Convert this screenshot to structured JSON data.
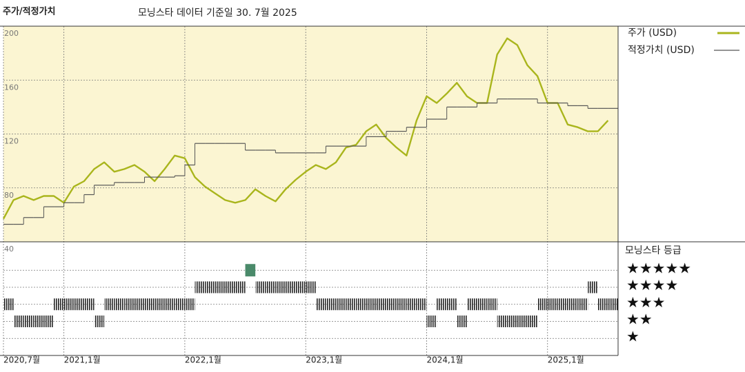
{
  "chart_data": [
    {
      "type": "line",
      "title": "주가/적정가치",
      "subtitle": "모닝스타 데이터 기준일 30. 7월 2025",
      "x": [
        "2020-07",
        "2020-08",
        "2020-09",
        "2020-10",
        "2020-11",
        "2020-12",
        "2021-01",
        "2021-02",
        "2021-03",
        "2021-04",
        "2021-05",
        "2021-06",
        "2021-07",
        "2021-08",
        "2021-09",
        "2021-10",
        "2021-11",
        "2021-12",
        "2022-01",
        "2022-02",
        "2022-03",
        "2022-04",
        "2022-05",
        "2022-06",
        "2022-07",
        "2022-08",
        "2022-09",
        "2022-10",
        "2022-11",
        "2022-12",
        "2023-01",
        "2023-02",
        "2023-03",
        "2023-04",
        "2023-05",
        "2023-06",
        "2023-07",
        "2023-08",
        "2023-09",
        "2023-10",
        "2023-11",
        "2023-12",
        "2024-01",
        "2024-02",
        "2024-03",
        "2024-04",
        "2024-05",
        "2024-06",
        "2024-07",
        "2024-08",
        "2024-09",
        "2024-10",
        "2024-11",
        "2024-12",
        "2025-01",
        "2025-02",
        "2025-03",
        "2025-04",
        "2025-05",
        "2025-06",
        "2025-07"
      ],
      "xlim": [
        "2020-07",
        "2025-08"
      ],
      "xticks": [
        {
          "value": "2020-07",
          "label": "2020,7월"
        },
        {
          "value": "2021-01",
          "label": "2021,1월"
        },
        {
          "value": "2022-01",
          "label": "2022,1월"
        },
        {
          "value": "2023-01",
          "label": "2023,1월"
        },
        {
          "value": "2024-01",
          "label": "2024,1월"
        },
        {
          "value": "2025-01",
          "label": "2025,1월"
        }
      ],
      "ylim": [
        40,
        200
      ],
      "yticks": [
        40,
        80,
        120,
        160,
        200
      ],
      "series": [
        {
          "name": "주가 (USD)",
          "color": "#a9b51c",
          "style": "line",
          "values": [
            57,
            71,
            74,
            71,
            74,
            74,
            69,
            81,
            85,
            94,
            99,
            92,
            94,
            97,
            92,
            85,
            94,
            104,
            102,
            88,
            81,
            76,
            71,
            69,
            71,
            79,
            74,
            70,
            79,
            86,
            92,
            97,
            94,
            99,
            110,
            112,
            122,
            127,
            117,
            110,
            104,
            130,
            148,
            143,
            150,
            158,
            148,
            143,
            143,
            179,
            191,
            186,
            171,
            163,
            143,
            143,
            127,
            125,
            122,
            122,
            130
          ]
        },
        {
          "name": "적정가치 (USD)",
          "color": "#555555",
          "style": "step",
          "values": [
            53,
            53,
            58,
            58,
            66,
            66,
            69,
            69,
            75,
            82,
            82,
            84,
            84,
            84,
            88,
            88,
            88,
            89,
            97,
            113,
            113,
            113,
            113,
            113,
            108,
            108,
            108,
            106,
            106,
            106,
            106,
            106,
            111,
            111,
            111,
            111,
            118,
            118,
            122,
            122,
            125,
            125,
            131,
            131,
            140,
            140,
            140,
            143,
            143,
            146,
            146,
            146,
            146,
            143,
            143,
            143,
            141,
            141,
            139,
            139,
            139
          ]
        }
      ]
    },
    {
      "type": "rating",
      "title": "모닝스타 등급",
      "x": [
        "2020-07",
        "2020-08",
        "2020-09",
        "2020-10",
        "2020-11",
        "2020-12",
        "2021-01",
        "2021-02",
        "2021-03",
        "2021-04",
        "2021-05",
        "2021-06",
        "2021-07",
        "2021-08",
        "2021-09",
        "2021-10",
        "2021-11",
        "2021-12",
        "2022-01",
        "2022-02",
        "2022-03",
        "2022-04",
        "2022-05",
        "2022-06",
        "2022-07",
        "2022-08",
        "2022-09",
        "2022-10",
        "2022-11",
        "2022-12",
        "2023-01",
        "2023-02",
        "2023-03",
        "2023-04",
        "2023-05",
        "2023-06",
        "2023-07",
        "2023-08",
        "2023-09",
        "2023-10",
        "2023-11",
        "2023-12",
        "2024-01",
        "2024-02",
        "2024-03",
        "2024-04",
        "2024-05",
        "2024-06",
        "2024-07",
        "2024-08",
        "2024-09",
        "2024-10",
        "2024-11",
        "2024-12",
        "2025-01",
        "2025-02",
        "2025-03",
        "2025-04",
        "2025-05",
        "2025-06",
        "2025-07"
      ],
      "yticks": [
        {
          "value": 5,
          "label": "★★★★★"
        },
        {
          "value": 4,
          "label": "★★★★"
        },
        {
          "value": 3,
          "label": "★★★"
        },
        {
          "value": 2,
          "label": "★★"
        },
        {
          "value": 1,
          "label": "★"
        }
      ],
      "color": "#222222",
      "values": [
        3,
        2,
        2,
        2,
        2,
        3,
        3,
        3,
        3,
        2,
        3,
        3,
        3,
        3,
        3,
        3,
        3,
        3,
        3,
        4,
        4,
        4,
        4,
        4,
        5,
        4,
        4,
        4,
        4,
        4,
        4,
        3,
        3,
        3,
        3,
        3,
        3,
        3,
        3,
        3,
        3,
        3,
        2,
        3,
        3,
        2,
        3,
        3,
        3,
        2,
        2,
        2,
        2,
        3,
        3,
        3,
        3,
        3,
        4,
        3,
        3
      ]
    }
  ]
}
